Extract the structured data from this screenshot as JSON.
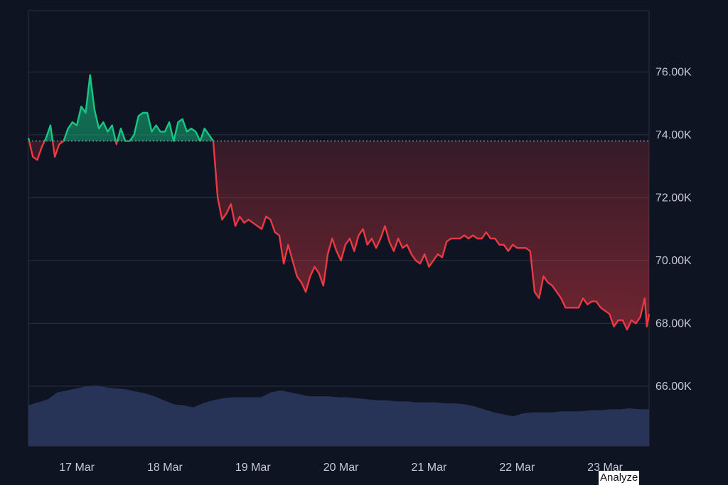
{
  "chart_data": {
    "type": "area",
    "y_ticks": [
      {
        "value": 76000,
        "label": "76.00K"
      },
      {
        "value": 74000,
        "label": "74.00K"
      },
      {
        "value": 72000,
        "label": "72.00K"
      },
      {
        "value": 70000,
        "label": "70.00K"
      },
      {
        "value": 68000,
        "label": "68.00K"
      },
      {
        "value": 66000,
        "label": "66.00K"
      }
    ],
    "x_ticks": [
      {
        "t": 1.0,
        "label": "17 Mar"
      },
      {
        "t": 2.0,
        "label": "18 Mar"
      },
      {
        "t": 3.0,
        "label": "19 Mar"
      },
      {
        "t": 4.0,
        "label": "20 Mar"
      },
      {
        "t": 5.0,
        "label": "21 Mar"
      },
      {
        "t": 6.0,
        "label": "22 Mar"
      },
      {
        "t": 7.0,
        "label": "23 Mar"
      }
    ],
    "x_range": [
      0.45,
      7.5
    ],
    "y_range": [
      64100,
      77950
    ],
    "baseline": 73800,
    "grid": true,
    "colors": {
      "up": "#16c784",
      "down": "#ea3943",
      "volume": "#283457",
      "grid": "#2a3142",
      "background": "#0e1422"
    },
    "series": [
      {
        "values": [
          [
            0.45,
            73900
          ],
          [
            0.5,
            73300
          ],
          [
            0.55,
            73200
          ],
          [
            0.6,
            73600
          ],
          [
            0.65,
            73900
          ],
          [
            0.7,
            74300
          ],
          [
            0.75,
            73300
          ],
          [
            0.8,
            73700
          ],
          [
            0.85,
            73800
          ],
          [
            0.9,
            74200
          ],
          [
            0.95,
            74400
          ],
          [
            1.0,
            74300
          ],
          [
            1.05,
            74900
          ],
          [
            1.1,
            74700
          ],
          [
            1.15,
            75900
          ],
          [
            1.2,
            74800
          ],
          [
            1.25,
            74200
          ],
          [
            1.3,
            74400
          ],
          [
            1.35,
            74100
          ],
          [
            1.4,
            74300
          ],
          [
            1.45,
            73700
          ],
          [
            1.5,
            74200
          ],
          [
            1.55,
            73800
          ],
          [
            1.6,
            73800
          ],
          [
            1.65,
            74000
          ],
          [
            1.7,
            74600
          ],
          [
            1.75,
            74700
          ],
          [
            1.8,
            74700
          ],
          [
            1.85,
            74100
          ],
          [
            1.9,
            74300
          ],
          [
            1.95,
            74100
          ],
          [
            2.0,
            74100
          ],
          [
            2.05,
            74400
          ],
          [
            2.1,
            73800
          ],
          [
            2.15,
            74400
          ],
          [
            2.2,
            74500
          ],
          [
            2.25,
            74100
          ],
          [
            2.3,
            74200
          ],
          [
            2.35,
            74100
          ],
          [
            2.4,
            73800
          ],
          [
            2.45,
            74200
          ],
          [
            2.5,
            74000
          ],
          [
            2.55,
            73800
          ],
          [
            2.6,
            72000
          ],
          [
            2.65,
            71300
          ],
          [
            2.7,
            71500
          ],
          [
            2.75,
            71800
          ],
          [
            2.8,
            71100
          ],
          [
            2.85,
            71400
          ],
          [
            2.9,
            71200
          ],
          [
            2.95,
            71300
          ],
          [
            3.0,
            71200
          ],
          [
            3.05,
            71100
          ],
          [
            3.1,
            71000
          ],
          [
            3.15,
            71400
          ],
          [
            3.2,
            71300
          ],
          [
            3.25,
            70900
          ],
          [
            3.3,
            70800
          ],
          [
            3.35,
            69900
          ],
          [
            3.4,
            70500
          ],
          [
            3.45,
            70000
          ],
          [
            3.5,
            69500
          ],
          [
            3.55,
            69300
          ],
          [
            3.6,
            69000
          ],
          [
            3.65,
            69500
          ],
          [
            3.7,
            69800
          ],
          [
            3.75,
            69600
          ],
          [
            3.8,
            69200
          ],
          [
            3.85,
            70200
          ],
          [
            3.9,
            70700
          ],
          [
            3.95,
            70300
          ],
          [
            4.0,
            70000
          ],
          [
            4.05,
            70500
          ],
          [
            4.1,
            70700
          ],
          [
            4.15,
            70300
          ],
          [
            4.2,
            70800
          ],
          [
            4.25,
            71000
          ],
          [
            4.3,
            70500
          ],
          [
            4.35,
            70700
          ],
          [
            4.4,
            70400
          ],
          [
            4.45,
            70700
          ],
          [
            4.5,
            71100
          ],
          [
            4.55,
            70600
          ],
          [
            4.6,
            70300
          ],
          [
            4.65,
            70700
          ],
          [
            4.7,
            70400
          ],
          [
            4.75,
            70500
          ],
          [
            4.8,
            70200
          ],
          [
            4.85,
            70000
          ],
          [
            4.9,
            69900
          ],
          [
            4.95,
            70200
          ],
          [
            5.0,
            69800
          ],
          [
            5.05,
            70000
          ],
          [
            5.1,
            70200
          ],
          [
            5.15,
            70100
          ],
          [
            5.2,
            70600
          ],
          [
            5.25,
            70700
          ],
          [
            5.3,
            70700
          ],
          [
            5.35,
            70700
          ],
          [
            5.4,
            70800
          ],
          [
            5.45,
            70700
          ],
          [
            5.5,
            70800
          ],
          [
            5.55,
            70700
          ],
          [
            5.6,
            70700
          ],
          [
            5.65,
            70900
          ],
          [
            5.7,
            70700
          ],
          [
            5.75,
            70700
          ],
          [
            5.8,
            70500
          ],
          [
            5.85,
            70500
          ],
          [
            5.9,
            70300
          ],
          [
            5.95,
            70500
          ],
          [
            6.0,
            70400
          ],
          [
            6.05,
            70400
          ],
          [
            6.1,
            70400
          ],
          [
            6.15,
            70300
          ],
          [
            6.2,
            69000
          ],
          [
            6.25,
            68800
          ],
          [
            6.3,
            69500
          ],
          [
            6.35,
            69300
          ],
          [
            6.4,
            69200
          ],
          [
            6.45,
            69000
          ],
          [
            6.5,
            68800
          ],
          [
            6.55,
            68500
          ],
          [
            6.6,
            68500
          ],
          [
            6.65,
            68500
          ],
          [
            6.7,
            68500
          ],
          [
            6.75,
            68800
          ],
          [
            6.8,
            68600
          ],
          [
            6.85,
            68700
          ],
          [
            6.9,
            68700
          ],
          [
            6.95,
            68500
          ],
          [
            7.0,
            68400
          ],
          [
            7.05,
            68300
          ],
          [
            7.1,
            67900
          ],
          [
            7.15,
            68100
          ],
          [
            7.2,
            68100
          ],
          [
            7.25,
            67800
          ],
          [
            7.3,
            68100
          ],
          [
            7.35,
            68000
          ],
          [
            7.4,
            68200
          ],
          [
            7.45,
            68800
          ],
          [
            7.475,
            67900
          ],
          [
            7.5,
            68300
          ]
        ]
      }
    ],
    "volume": [
      0.25,
      0.28,
      0.31,
      0.38,
      0.4,
      0.42,
      0.44,
      0.45,
      0.43,
      0.42,
      0.41,
      0.39,
      0.37,
      0.34,
      0.3,
      0.26,
      0.25,
      0.23,
      0.27,
      0.3,
      0.32,
      0.33,
      0.33,
      0.33,
      0.33,
      0.38,
      0.4,
      0.38,
      0.36,
      0.34,
      0.34,
      0.34,
      0.33,
      0.33,
      0.32,
      0.31,
      0.3,
      0.3,
      0.29,
      0.29,
      0.28,
      0.28,
      0.28,
      0.27,
      0.27,
      0.26,
      0.24,
      0.21,
      0.18,
      0.16,
      0.14,
      0.17,
      0.18,
      0.18,
      0.18,
      0.19,
      0.19,
      0.19,
      0.2,
      0.2,
      0.21,
      0.21,
      0.22,
      0.21,
      0.21
    ]
  },
  "footer": {
    "analyze_label": "Analyze"
  }
}
